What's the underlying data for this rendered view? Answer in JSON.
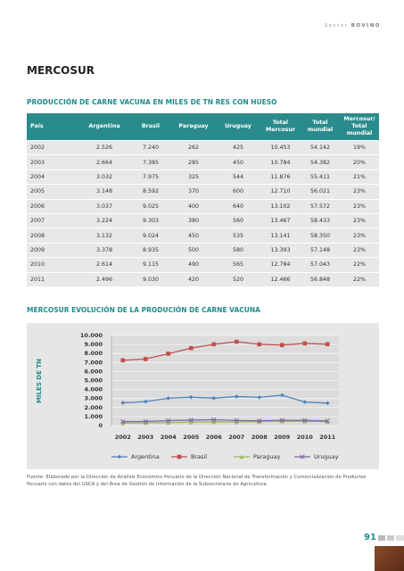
{
  "header": {
    "section": "Sector",
    "subsection": "BOVINO"
  },
  "title": "MERCOSUR",
  "table": {
    "title": "PRODUCCIÓN DE CARNE VACUNA EN MILES DE TN RES CON HUESO",
    "columns": [
      "País",
      "Argentina",
      "Brasil",
      "Paraguay",
      "Uruguay",
      "Total Mercosur",
      "Total mundial",
      "Mercosur/ Total mundial"
    ],
    "rows": [
      [
        "2002",
        "2.526",
        "7.240",
        "262",
        "425",
        "10.453",
        "54.142",
        "19%"
      ],
      [
        "2003",
        "2.664",
        "7.385",
        "285",
        "450",
        "10.784",
        "54.382",
        "20%"
      ],
      [
        "2004",
        "3.032",
        "7.975",
        "325",
        "544",
        "11.876",
        "55.411",
        "21%"
      ],
      [
        "2005",
        "3.148",
        "8.592",
        "370",
        "600",
        "12.710",
        "56.021",
        "23%"
      ],
      [
        "2006",
        "3.037",
        "9.025",
        "400",
        "640",
        "13.102",
        "57.572",
        "23%"
      ],
      [
        "2007",
        "3.224",
        "9.303",
        "380",
        "560",
        "13.467",
        "58.433",
        "23%"
      ],
      [
        "2008",
        "3.132",
        "9.024",
        "450",
        "535",
        "13.141",
        "58.350",
        "23%"
      ],
      [
        "2009",
        "3.378",
        "8.935",
        "500",
        "580",
        "13.393",
        "57.148",
        "23%"
      ],
      [
        "2010",
        "2.614",
        "9.115",
        "490",
        "565",
        "12.784",
        "57.043",
        "22%"
      ],
      [
        "2011",
        "2.496",
        "9.030",
        "420",
        "520",
        "12.466",
        "56.848",
        "22%"
      ]
    ]
  },
  "chart_data": {
    "type": "line",
    "title": "MERCOSUR EVOLUCIÓN DE LA PRODUCIÓN DE CARNE VACUNA",
    "y_label": "MILES DE TN",
    "categories": [
      "2002",
      "2003",
      "2004",
      "2005",
      "2006",
      "2007",
      "2008",
      "2009",
      "2010",
      "2011"
    ],
    "series": [
      {
        "name": "Argentina",
        "color": "#4f81bd",
        "values": [
          2526,
          2664,
          3032,
          3148,
          3037,
          3224,
          3132,
          3378,
          2614,
          2496
        ]
      },
      {
        "name": "Brasil",
        "color": "#c0504d",
        "values": [
          7240,
          7385,
          7975,
          8592,
          9025,
          9303,
          9024,
          8935,
          9115,
          9030
        ]
      },
      {
        "name": "Paraguay",
        "color": "#9bbb59",
        "values": [
          262,
          285,
          325,
          370,
          400,
          380,
          450,
          500,
          490,
          420
        ]
      },
      {
        "name": "Uruguay",
        "color": "#8064a2",
        "values": [
          425,
          450,
          544,
          600,
          640,
          560,
          535,
          580,
          565,
          520
        ]
      }
    ],
    "ylim": [
      0,
      10000
    ],
    "yticks": [
      0,
      {
        "value": 1000,
        "label": "1.000"
      },
      {
        "value": 2000,
        "label": "2.000"
      },
      {
        "value": 3000,
        "label": "3.000"
      },
      {
        "value": 4000,
        "label": "4.000"
      },
      {
        "value": 5000,
        "label": "5.000"
      },
      {
        "value": 6000,
        "label": "6.000"
      },
      {
        "value": 7000,
        "label": "7.000"
      },
      {
        "value": 8000,
        "label": "8.000"
      },
      {
        "value": 9000,
        "label": "9.000"
      },
      {
        "value": 10000,
        "label": "10.000"
      }
    ],
    "grid": true,
    "legend": "bottom"
  },
  "footnote": "Fuente: Elaborado por la Dirección de Análisis Económico Pecuario de la Dirección Nacional de Transformación y Comercialización de Productos Pecuario con datos del USCA y del Área de Gestión de Información de la Subsecretaría de Agricultura.",
  "page_number": "91"
}
